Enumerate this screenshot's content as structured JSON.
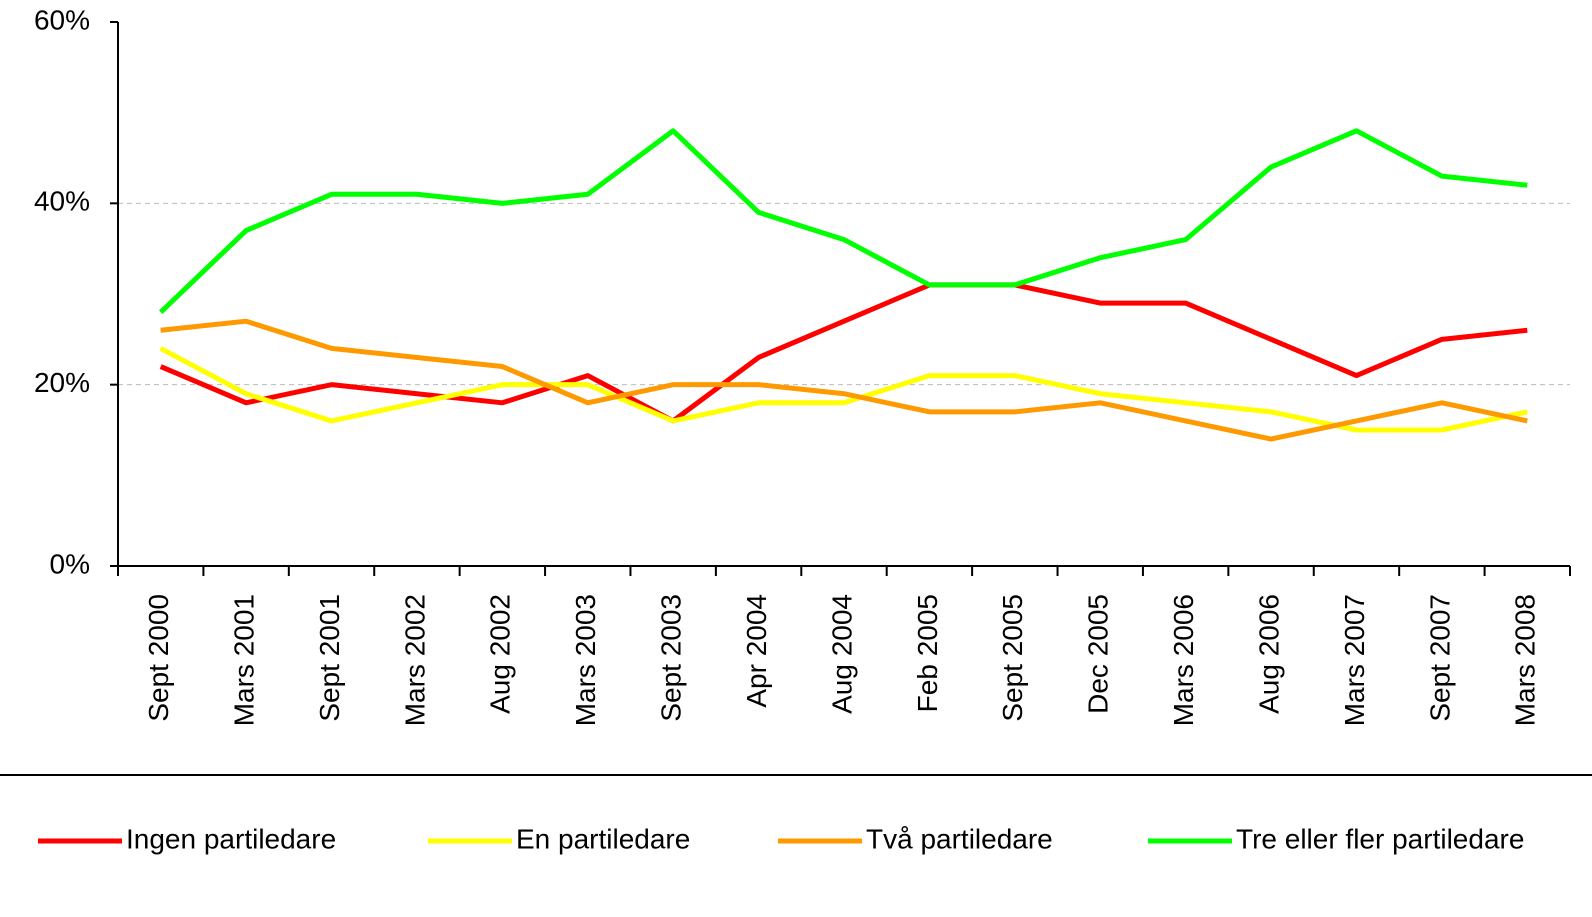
{
  "chart_data": {
    "type": "line",
    "categories": [
      "Sept 2000",
      "Mars 2001",
      "Sept 2001",
      "Mars 2002",
      "Aug 2002",
      "Mars 2003",
      "Sept 2003",
      "Apr 2004",
      "Aug 2004",
      "Feb 2005",
      "Sept 2005",
      "Dec 2005",
      "Mars 2006",
      "Aug 2006",
      "Mars 2007",
      "Sept 2007",
      "Mars 2008"
    ],
    "series": [
      {
        "name": "Ingen partiledare",
        "color": "#ff0000",
        "values": [
          22,
          18,
          20,
          19,
          18,
          21,
          16,
          23,
          27,
          31,
          31,
          29,
          29,
          25,
          21,
          25,
          26
        ]
      },
      {
        "name": "En partiledare",
        "color": "#ffff00",
        "values": [
          24,
          19,
          16,
          18,
          20,
          20,
          16,
          18,
          18,
          21,
          21,
          19,
          18,
          17,
          15,
          15,
          17
        ]
      },
      {
        "name": "Två partiledare",
        "color": "#ff9900",
        "values": [
          26,
          27,
          24,
          23,
          22,
          18,
          20,
          20,
          19,
          17,
          17,
          18,
          16,
          14,
          16,
          18,
          16
        ]
      },
      {
        "name": "Tre eller fler partiledare",
        "color": "#00ff00",
        "values": [
          28,
          37,
          41,
          41,
          40,
          41,
          48,
          39,
          36,
          31,
          31,
          34,
          36,
          44,
          48,
          43,
          42
        ]
      }
    ],
    "ylim": [
      0,
      60
    ],
    "yticks": [
      {
        "value": 0,
        "label": "0%"
      },
      {
        "value": 20,
        "label": "20%"
      },
      {
        "value": 40,
        "label": "40%"
      },
      {
        "value": 60,
        "label": "60%"
      }
    ],
    "grid": true,
    "legend": "bottom"
  }
}
